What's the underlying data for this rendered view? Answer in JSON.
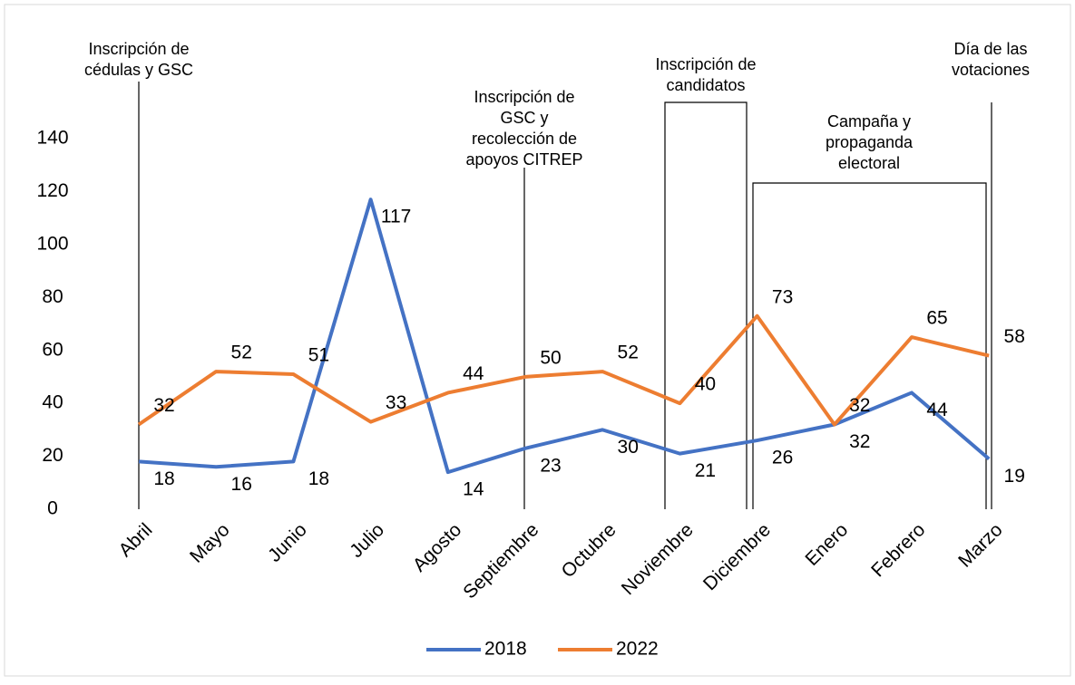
{
  "chart_data": {
    "type": "line",
    "categories": [
      "Abril",
      "Mayo",
      "Junio",
      "Julio",
      "Agosto",
      "Septiembre",
      "Octubre",
      "Noviembre",
      "Diciembre",
      "Enero",
      "Febrero",
      "Marzo"
    ],
    "series": [
      {
        "name": "2018",
        "color": "#4472c4",
        "values": [
          18,
          16,
          18,
          117,
          14,
          23,
          30,
          21,
          26,
          32,
          44,
          19
        ]
      },
      {
        "name": "2022",
        "color": "#ed7d31",
        "values": [
          32,
          52,
          51,
          33,
          44,
          50,
          52,
          40,
          73,
          32,
          65,
          58
        ]
      }
    ],
    "ylim": [
      0,
      140
    ],
    "yticks": [
      0,
      20,
      40,
      60,
      80,
      100,
      120,
      140
    ],
    "annotations": [
      {
        "lines": [
          "Inscripción de",
          "cédulas y GSC"
        ]
      },
      {
        "lines": [
          "Inscripción de",
          "GSC y",
          "recolección de",
          "apoyos CITREP"
        ]
      },
      {
        "lines": [
          "Inscripción de",
          "candidatos"
        ]
      },
      {
        "lines": [
          "Campaña y",
          "propaganda",
          "electoral"
        ]
      },
      {
        "lines": [
          "Día de las",
          "votaciones"
        ]
      }
    ],
    "legend": "bottom"
  }
}
